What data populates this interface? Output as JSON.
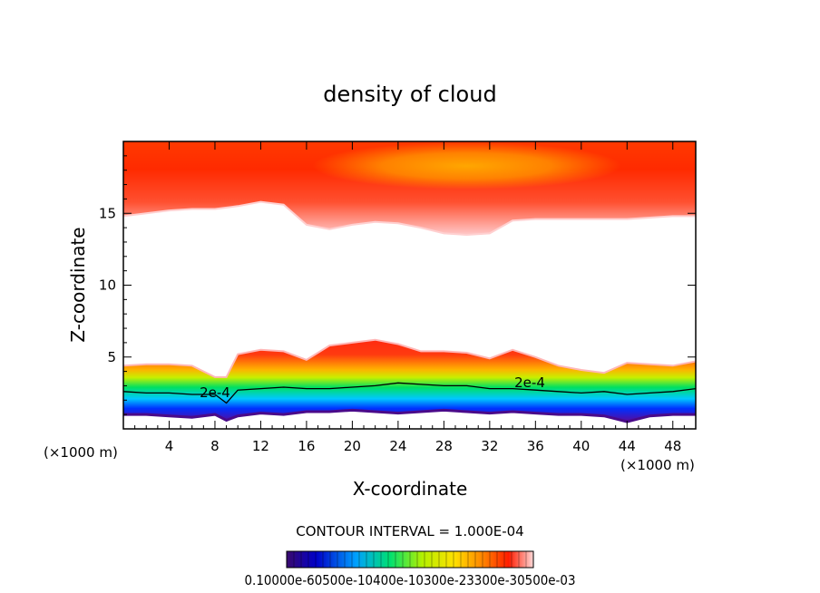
{
  "chart_data": {
    "type": "heatmap",
    "title": "density of cloud",
    "xlabel": "X-coordinate",
    "ylabel": "Z-coordinate",
    "x_unit_label": "(×1000 m)",
    "x_unit_label_right": "(×1000 m)",
    "xlim": [
      0,
      50
    ],
    "ylim": [
      0,
      20
    ],
    "x_ticks": [
      4,
      8,
      12,
      16,
      20,
      24,
      28,
      32,
      36,
      40,
      44,
      48
    ],
    "y_ticks": [
      5,
      10,
      15
    ],
    "contour_interval_text": "CONTOUR INTERVAL = 1.000E-04",
    "contour_labels": [
      "2e-4",
      "2e-4"
    ],
    "colorbar_labels_text": "0.10000e-60500e-10400e-10300e-23300e-30500e-03",
    "color_scale": [
      "#3a0a6e",
      "#0000c8",
      "#00a0ff",
      "#00e070",
      "#b4f000",
      "#ffe000",
      "#ff8000",
      "#ff1c00",
      "#ffd8d8"
    ],
    "upper_layer": {
      "x": [
        0,
        2,
        4,
        6,
        8,
        10,
        12,
        14,
        16,
        18,
        20,
        22,
        24,
        26,
        28,
        30,
        32,
        34,
        36,
        38,
        40,
        42,
        44,
        46,
        48,
        50
      ],
      "base_km": [
        14.8,
        15.0,
        15.2,
        15.3,
        15.3,
        15.5,
        15.8,
        15.6,
        14.2,
        13.9,
        14.2,
        14.4,
        14.3,
        14.0,
        13.6,
        13.5,
        13.6,
        14.5,
        14.6,
        14.6,
        14.6,
        14.6,
        14.6,
        14.7,
        14.8,
        14.8
      ]
    },
    "lower_layer": {
      "x": [
        0,
        2,
        4,
        6,
        8,
        9,
        10,
        12,
        14,
        16,
        18,
        20,
        22,
        24,
        26,
        28,
        30,
        32,
        34,
        36,
        38,
        40,
        42,
        44,
        46,
        48,
        50
      ],
      "top_km": [
        4.4,
        4.5,
        4.5,
        4.4,
        3.6,
        3.6,
        5.2,
        5.5,
        5.4,
        4.8,
        5.8,
        6.0,
        6.2,
        5.9,
        5.4,
        5.4,
        5.3,
        4.9,
        5.5,
        5.0,
        4.4,
        4.1,
        3.9,
        4.6,
        4.5,
        4.4,
        4.7
      ],
      "contour_2e4_km": [
        2.6,
        2.5,
        2.5,
        2.4,
        2.4,
        1.8,
        2.7,
        2.8,
        2.9,
        2.8,
        2.8,
        2.9,
        3.0,
        3.2,
        3.1,
        3.0,
        3.0,
        2.8,
        2.8,
        2.7,
        2.6,
        2.5,
        2.6,
        2.4,
        2.5,
        2.6,
        2.8
      ],
      "base_km": [
        1.0,
        1.0,
        0.9,
        0.8,
        1.0,
        0.6,
        0.9,
        1.1,
        1.0,
        1.2,
        1.2,
        1.3,
        1.2,
        1.1,
        1.2,
        1.3,
        1.2,
        1.1,
        1.2,
        1.1,
        1.0,
        1.0,
        0.9,
        0.5,
        0.9,
        1.0,
        1.0
      ]
    }
  }
}
